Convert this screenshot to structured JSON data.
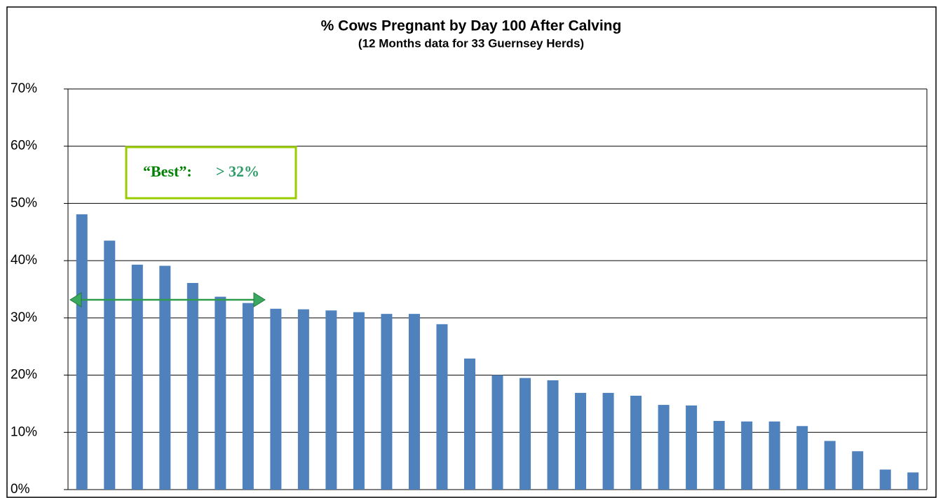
{
  "chart_data": {
    "type": "bar",
    "title": "% Cows Pregnant by Day 100 After Calving",
    "subtitle": "(12 Months data for 33 Guernsey Herds)",
    "annotations": [
      "“Best”:",
      "> 32%"
    ],
    "values": [
      48.1,
      43.5,
      39.3,
      39.1,
      36.1,
      33.7,
      32.6,
      31.6,
      31.5,
      31.3,
      31.0,
      30.7,
      30.7,
      28.9,
      22.9,
      20.0,
      19.5,
      19.1,
      16.9,
      16.9,
      16.4,
      14.8,
      14.7,
      12.0,
      11.9,
      11.9,
      11.1,
      8.5,
      6.7,
      3.5,
      3.0
    ],
    "color": "#4f81bd",
    "ylim": [
      0,
      70
    ],
    "yticks": [
      {
        "value": 0,
        "label": "0%"
      },
      {
        "value": 10,
        "label": "10%"
      },
      {
        "value": 20,
        "label": "20%"
      },
      {
        "value": 30,
        "label": "30%"
      },
      {
        "value": 40,
        "label": "40%"
      },
      {
        "value": 50,
        "label": "50%"
      },
      {
        "value": 60,
        "label": "60%"
      },
      {
        "value": 70,
        "label": "70%"
      }
    ],
    "grid": true
  }
}
